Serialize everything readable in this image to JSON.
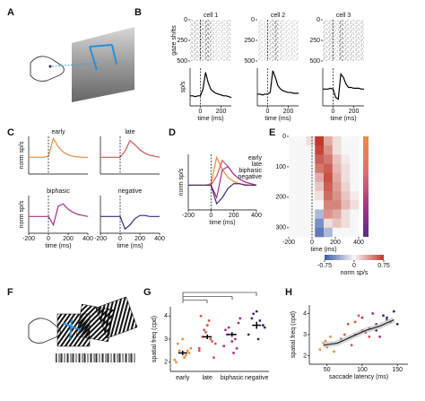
{
  "panel_labels": [
    "A",
    "B",
    "C",
    "D",
    "E",
    "F",
    "G",
    "H"
  ],
  "chart_data": [
    {
      "type": "raster",
      "title": "cell 1",
      "ylabel": "gaze shifts",
      "xbins": [
        -100,
        -50,
        0,
        50,
        100,
        150,
        200,
        250,
        300
      ],
      "values": [
        0.5,
        0.5,
        0.6,
        1.0,
        0.4,
        0.3,
        0.35,
        0.4
      ],
      "xlim": [
        -100,
        300
      ],
      "ylim": [
        0,
        500
      ],
      "yticks": [
        0,
        250,
        500
      ],
      "y_inverted": true,
      "event_x": 0
    },
    {
      "type": "raster",
      "title": "cell 2",
      "xbins": [
        -100,
        -50,
        0,
        50,
        100,
        150,
        200,
        250,
        300
      ],
      "values": [
        0.3,
        0.3,
        0.45,
        0.9,
        0.4,
        0.3,
        0.3,
        0.3
      ],
      "xlim": [
        -100,
        300
      ],
      "ylim": [
        0,
        500
      ],
      "yticks": [
        0,
        250,
        500
      ],
      "y_inverted": true,
      "event_x": 0
    },
    {
      "type": "raster",
      "title": "cell 3",
      "xbins": [
        -100,
        -50,
        0,
        50,
        100,
        150,
        200,
        250,
        300
      ],
      "values": [
        0.45,
        0.45,
        0.3,
        0.9,
        0.5,
        0.45,
        0.45,
        0.45
      ],
      "xlim": [
        -100,
        300
      ],
      "ylim": [
        0,
        500
      ],
      "yticks": [
        0,
        250,
        500
      ],
      "y_inverted": true,
      "event_x": 0
    },
    {
      "type": "line",
      "ylabel": "sp/s",
      "xlabel": "time (ms)",
      "x": [
        -100,
        -75,
        -50,
        -25,
        0,
        25,
        50,
        75,
        100,
        125,
        150,
        175,
        200,
        225,
        250,
        275,
        300
      ],
      "values": [
        12,
        12,
        11,
        12,
        12,
        20,
        40,
        28,
        20,
        17,
        15,
        14,
        13,
        12,
        12,
        11,
        10
      ],
      "color": "#000000",
      "xlim": [
        -100,
        300
      ],
      "ylim": [
        0,
        45
      ],
      "xticks": [
        0,
        200
      ],
      "event_x": 0
    },
    {
      "type": "line",
      "xlabel": "time (ms)",
      "x": [
        -100,
        -75,
        -50,
        -25,
        0,
        25,
        50,
        75,
        100,
        125,
        150,
        175,
        200,
        225,
        250,
        275,
        300
      ],
      "values": [
        14,
        14,
        13,
        14,
        14,
        16,
        42,
        34,
        24,
        20,
        18,
        17,
        16,
        16,
        15,
        15,
        15
      ],
      "color": "#000000",
      "xlim": [
        -100,
        300
      ],
      "ylim": [
        0,
        45
      ],
      "xticks": [
        0,
        200
      ],
      "event_x": 0
    },
    {
      "type": "line",
      "xlabel": "time (ms)",
      "x": [
        -100,
        -75,
        -50,
        -25,
        0,
        25,
        50,
        75,
        100,
        125,
        150,
        175,
        200,
        225,
        250,
        275,
        300
      ],
      "values": [
        20,
        20,
        20,
        21,
        20,
        10,
        8,
        38,
        34,
        26,
        22,
        22,
        21,
        21,
        21,
        20,
        20
      ],
      "color": "#000000",
      "xlim": [
        -100,
        300
      ],
      "ylim": [
        0,
        45
      ],
      "xticks": [
        0,
        200
      ],
      "event_x": 0
    },
    {
      "type": "line",
      "title": "early",
      "ylabel": "norm sp/s",
      "x": [
        -200,
        -150,
        -100,
        -50,
        0,
        50,
        100,
        150,
        200,
        250,
        300,
        350,
        400
      ],
      "values": [
        0,
        0,
        0,
        0,
        0.05,
        0.9,
        0.5,
        0.25,
        0.12,
        0.05,
        0.02,
        0,
        0
      ],
      "color": "#f08a3c",
      "xlim": [
        -200,
        400
      ],
      "ylim": [
        -0.8,
        1
      ],
      "event_x": 0
    },
    {
      "type": "line",
      "title": "late",
      "x": [
        -200,
        -150,
        -100,
        -50,
        0,
        50,
        100,
        150,
        200,
        250,
        300,
        350,
        400
      ],
      "values": [
        0,
        0,
        0,
        0,
        0,
        0.3,
        0.8,
        0.6,
        0.35,
        0.2,
        0.1,
        0.05,
        0
      ],
      "color": "#d9534f",
      "xlim": [
        -200,
        400
      ],
      "ylim": [
        -0.8,
        1
      ],
      "event_x": 0
    },
    {
      "type": "line",
      "title": "biphasic",
      "ylabel": "norm sp/s",
      "xlabel": "time (ms)",
      "x": [
        -200,
        -150,
        -100,
        -50,
        0,
        50,
        100,
        150,
        200,
        250,
        300,
        350,
        400
      ],
      "values": [
        0,
        0,
        0,
        0,
        0,
        -0.4,
        0.5,
        0.6,
        0.35,
        0.2,
        0.1,
        0.05,
        0
      ],
      "color": "#a8308a",
      "xlim": [
        -200,
        400
      ],
      "ylim": [
        -0.8,
        1
      ],
      "xticks": [
        -200,
        0,
        200,
        400
      ],
      "event_x": 0
    },
    {
      "type": "line",
      "title": "negative",
      "xlabel": "time (ms)",
      "x": [
        -200,
        -150,
        -100,
        -50,
        0,
        50,
        100,
        150,
        200,
        250,
        300,
        350,
        400
      ],
      "values": [
        0,
        0,
        0,
        0,
        0,
        -0.6,
        -0.4,
        -0.1,
        0.05,
        0.05,
        0,
        0,
        0
      ],
      "color": "#3d2a80",
      "xlim": [
        -200,
        400
      ],
      "ylim": [
        -0.8,
        1
      ],
      "xticks": [
        -200,
        0,
        200,
        400
      ],
      "event_x": 0
    },
    {
      "type": "line",
      "ylabel": "norm sp/s",
      "xlabel": "time (ms)",
      "legend": "upper right",
      "x": [
        -200,
        -150,
        -100,
        -50,
        0,
        50,
        100,
        150,
        200,
        250,
        300,
        350,
        400
      ],
      "series": [
        {
          "name": "early",
          "color": "#f08a3c",
          "values": [
            0,
            0,
            0,
            0,
            0.05,
            0.9,
            0.5,
            0.25,
            0.12,
            0.05,
            0.02,
            0,
            0
          ]
        },
        {
          "name": "late",
          "color": "#d9534f",
          "values": [
            0,
            0,
            0,
            0,
            0,
            0.3,
            0.8,
            0.6,
            0.35,
            0.2,
            0.1,
            0.05,
            0
          ]
        },
        {
          "name": "biphasic",
          "color": "#a8308a",
          "values": [
            0,
            0,
            0,
            0,
            0,
            -0.4,
            0.5,
            0.6,
            0.35,
            0.2,
            0.1,
            0.05,
            0
          ]
        },
        {
          "name": "negative",
          "color": "#3d2a80",
          "values": [
            0,
            0,
            0,
            0,
            0,
            -0.6,
            -0.4,
            -0.1,
            0.05,
            0.05,
            0,
            0,
            0
          ]
        }
      ],
      "xlim": [
        -200,
        400
      ],
      "ylim": [
        -0.8,
        1
      ],
      "xticks": [
        -200,
        0,
        200,
        400
      ],
      "event_x": 0
    },
    {
      "type": "heatmap",
      "xlabel": "time (ms)",
      "xbins": [
        -200,
        -125,
        -50,
        25,
        100,
        175,
        250,
        325,
        400
      ],
      "ybins": [
        0,
        30,
        60,
        90,
        120,
        150,
        180,
        210,
        240,
        270,
        300,
        330
      ],
      "values": [
        [
          0,
          0,
          0.1,
          0.75,
          0.3,
          0.1,
          0,
          0
        ],
        [
          0,
          0,
          0,
          0.7,
          0.4,
          0.1,
          0,
          0
        ],
        [
          0,
          0,
          0,
          0.6,
          0.5,
          0.2,
          0.05,
          0
        ],
        [
          0,
          0,
          0,
          0.5,
          0.6,
          0.25,
          0.1,
          0
        ],
        [
          0,
          0,
          0,
          0.3,
          0.65,
          0.3,
          0.1,
          0
        ],
        [
          0,
          0,
          0,
          0.2,
          0.6,
          0.35,
          0.15,
          0
        ],
        [
          0,
          0,
          0,
          0.1,
          0.55,
          0.4,
          0.2,
          0.05
        ],
        [
          0,
          0,
          0,
          0,
          0.45,
          0.45,
          0.25,
          0.1
        ],
        [
          0,
          0,
          0,
          -0.3,
          0.4,
          0.3,
          0.1,
          0
        ],
        [
          0,
          0,
          0,
          -0.5,
          0.1,
          0.2,
          0.1,
          0
        ],
        [
          0,
          0,
          0,
          -0.6,
          -0.3,
          0,
          0,
          0
        ]
      ],
      "xlim": [
        -200,
        400
      ],
      "ylim": [
        0,
        330
      ],
      "y_inverted": true,
      "xticks": [
        -200,
        0,
        200,
        400
      ],
      "yticks": [
        0,
        100,
        200,
        300
      ],
      "event_x": 0,
      "colormap": [
        "#3b5bab",
        "#f7f7f7",
        "#c0392b"
      ],
      "clim": [
        -0.75,
        0.75
      ],
      "cticks": [
        -0.75,
        0,
        0.75
      ],
      "clabel": "norm sp/s"
    },
    {
      "type": "strip",
      "ylabel": "spatial freq (cpd)",
      "categories": [
        "early",
        "late",
        "biphasic",
        "negative"
      ],
      "colors": [
        "#f08a3c",
        "#d9534f",
        "#a8308a",
        "#3d2a80"
      ],
      "values": [
        [
          2.1,
          2.3,
          2.5,
          2.6,
          2.2,
          2.8,
          2.4,
          3.0,
          2.0,
          2.5
        ],
        [
          2.5,
          3.0,
          3.4,
          2.8,
          3.8,
          3.1,
          2.2,
          3.6,
          4.0,
          2.9,
          3.3,
          2.6
        ],
        [
          2.7,
          3.0,
          3.5,
          3.9,
          2.4,
          3.2,
          3.7,
          2.9,
          3.4,
          2.6
        ],
        [
          3.2,
          3.8,
          4.1,
          3.5,
          3.0,
          3.9,
          3.6,
          4.2
        ]
      ],
      "means": [
        2.4,
        3.1,
        3.2,
        3.6
      ],
      "sem": [
        0.1,
        0.1,
        0.1,
        0.15
      ],
      "ylim": [
        1.6,
        4.4
      ],
      "yticks": [
        2,
        3,
        4
      ]
    },
    {
      "type": "scatter",
      "ylabel": "spatial freq (cpd)",
      "xlabel": "saccade latency (ms)",
      "series": [
        {
          "color": "#f08a3c",
          "x": [
            40,
            45,
            50,
            55,
            60,
            48
          ],
          "values": [
            2.3,
            2.6,
            2.4,
            2.9,
            2.2,
            2.7
          ]
        },
        {
          "color": "#d9534f",
          "x": [
            70,
            80,
            85,
            95,
            100,
            110,
            75,
            90
          ],
          "values": [
            2.8,
            3.5,
            2.5,
            3.9,
            3.2,
            2.9,
            3.0,
            3.6
          ]
        },
        {
          "color": "#a8308a",
          "x": [
            90,
            100,
            110,
            120,
            125,
            135,
            115,
            105
          ],
          "values": [
            3.0,
            3.8,
            3.3,
            3.5,
            2.9,
            3.7,
            4.0,
            3.1
          ]
        },
        {
          "color": "#3d2a80",
          "x": [
            120,
            130,
            140,
            145,
            150,
            135
          ],
          "values": [
            3.2,
            3.9,
            3.6,
            4.1,
            3.5,
            3.8
          ]
        }
      ],
      "fit": {
        "x": [
          45,
          65,
          85,
          105,
          125,
          145
        ],
        "values": [
          2.5,
          2.6,
          2.9,
          3.2,
          3.4,
          3.7
        ]
      },
      "xlim": [
        25,
        165
      ],
      "ylim": [
        1.6,
        4.4
      ],
      "xticks": [
        50,
        100,
        150
      ],
      "yticks": [
        2,
        3,
        4
      ]
    }
  ]
}
